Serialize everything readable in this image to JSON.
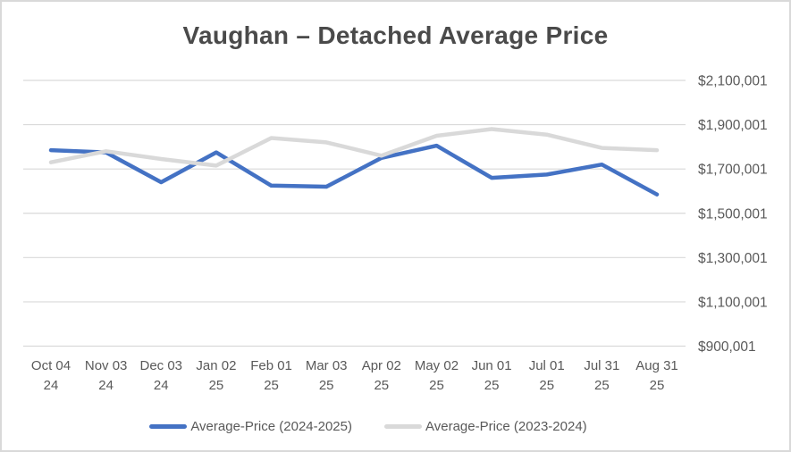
{
  "chart_data": {
    "type": "line",
    "title": "Vaughan – Detached Average Price",
    "categories": [
      "Oct 04 24",
      "Nov 03 24",
      "Dec 03 24",
      "Jan 02 25",
      "Feb 01 25",
      "Mar 03 25",
      "Apr 02 25",
      "May 02 25",
      "Jun 01 25",
      "Jul 01 25",
      "Jul 31 25",
      "Aug 31 25"
    ],
    "series": [
      {
        "name": "Average-Price (2024-2025)",
        "color": "#4472C4",
        "values": [
          1785000,
          1775000,
          1640000,
          1775000,
          1625000,
          1620000,
          1750000,
          1805000,
          1660000,
          1675000,
          1720000,
          1585000
        ]
      },
      {
        "name": "Average-Price (2023-2024)",
        "color": "#D9D9D9",
        "values": [
          1730000,
          1780000,
          1745000,
          1715000,
          1840000,
          1820000,
          1760000,
          1850000,
          1880000,
          1855000,
          1795000,
          1785000
        ]
      }
    ],
    "y_ticks": [
      {
        "value": 2100001,
        "label": "$2,100,001"
      },
      {
        "value": 1900001,
        "label": "$1,900,001"
      },
      {
        "value": 1700001,
        "label": "$1,700,001"
      },
      {
        "value": 1500001,
        "label": "$1,500,001"
      },
      {
        "value": 1300001,
        "label": "$1,300,001"
      },
      {
        "value": 1100001,
        "label": "$1,100,001"
      },
      {
        "value": 900001,
        "label": "$900,001"
      }
    ],
    "ylim": [
      900001,
      2100001
    ],
    "grid": true,
    "legend_position": "bottom",
    "y_axis_side": "right",
    "colors": {
      "grid": "#d9d9d9",
      "axis_text": "#595959",
      "title_text": "#4a4a4a",
      "frame_border": "#d9d9d9"
    }
  }
}
